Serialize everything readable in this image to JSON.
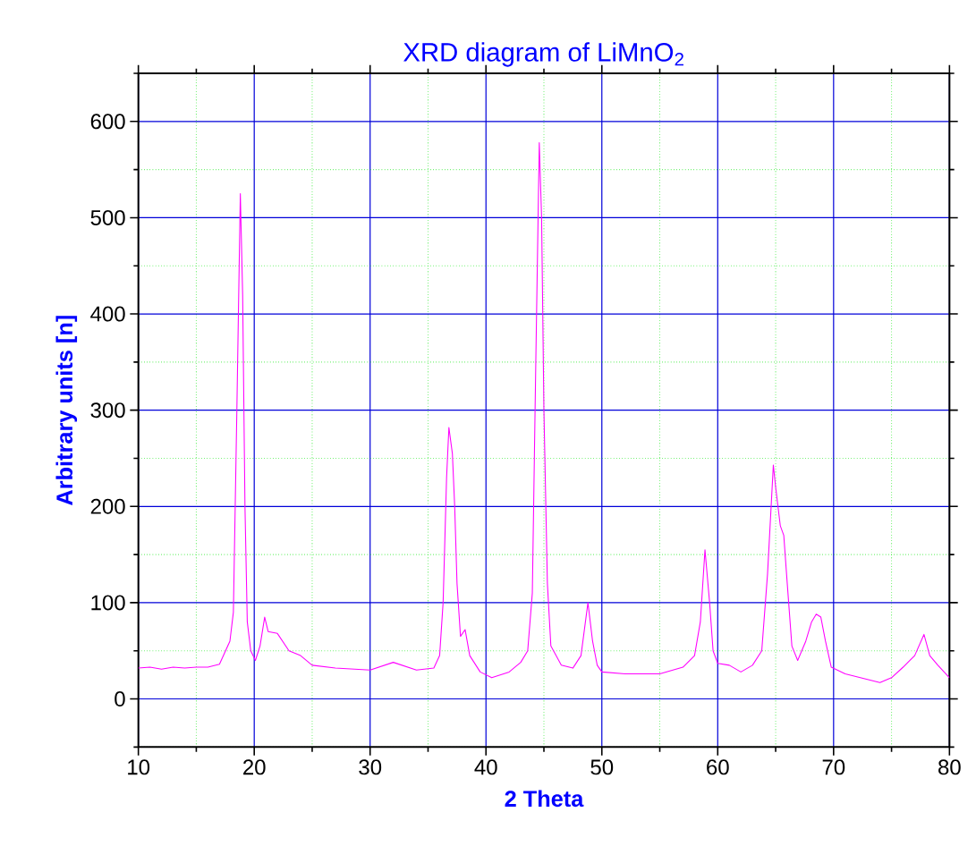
{
  "chart_data": {
    "type": "line",
    "title": "XRD diagram of LiMnO$_{2}$",
    "xlabel": "2 Theta",
    "ylabel": "Arbitrary units [n]",
    "x": [
      10,
      11,
      12,
      13,
      14,
      15,
      16,
      17,
      17.9,
      18.2,
      18.5,
      18.8,
      19.0,
      19.2,
      19.4,
      19.7,
      20.1,
      20.5,
      20.9,
      21.2,
      22,
      23,
      24,
      25,
      27,
      30,
      32,
      34,
      35.5,
      36,
      36.3,
      36.6,
      36.8,
      37.1,
      37.3,
      37.5,
      37.8,
      38.2,
      38.6,
      39.5,
      40.5,
      42,
      43,
      43.6,
      44.0,
      44.3,
      44.6,
      44.8,
      45.0,
      45.3,
      45.6,
      46.5,
      47.5,
      48.2,
      48.8,
      49.2,
      49.6,
      50,
      52,
      55,
      57,
      58,
      58.5,
      58.9,
      59.3,
      59.6,
      60,
      61,
      62,
      63,
      63.8,
      64.3,
      64.8,
      65.0,
      65.4,
      65.7,
      66,
      66.4,
      66.9,
      67.6,
      68.1,
      68.5,
      68.9,
      69.3,
      69.8,
      71,
      73,
      74,
      75,
      76,
      77,
      77.8,
      78.3,
      79,
      80
    ],
    "series": [
      {
        "color": "#ff00ff",
        "values": [
          32,
          33,
          31,
          33,
          32,
          33,
          33,
          36,
          60,
          90,
          300,
          525,
          420,
          200,
          80,
          50,
          40,
          55,
          85,
          70,
          68,
          50,
          45,
          35,
          32,
          30,
          38,
          30,
          32,
          45,
          100,
          230,
          282,
          255,
          200,
          120,
          65,
          72,
          45,
          28,
          22,
          28,
          38,
          50,
          110,
          350,
          578,
          500,
          300,
          120,
          55,
          35,
          32,
          45,
          100,
          60,
          35,
          28,
          26,
          26,
          33,
          45,
          80,
          155,
          100,
          50,
          37,
          35,
          28,
          35,
          50,
          130,
          243,
          220,
          180,
          170,
          120,
          55,
          40,
          60,
          80,
          88,
          85,
          60,
          33,
          26,
          20,
          17,
          22,
          33,
          45,
          67,
          45,
          35,
          22
        ]
      }
    ],
    "xlim": [
      10,
      80
    ],
    "ylim": [
      -50,
      650
    ],
    "xticks": [
      10,
      {
        "value": 15,
        "label": null
      },
      20,
      {
        "value": 25,
        "label": null
      },
      30,
      {
        "value": 35,
        "label": null
      },
      40,
      {
        "value": 45,
        "label": null
      },
      50,
      {
        "value": 55,
        "label": null
      },
      60,
      {
        "value": 65,
        "label": null
      },
      70,
      {
        "value": 75,
        "label": null
      },
      80
    ],
    "yticks": [
      {
        "value": -50,
        "label": null
      },
      0,
      {
        "value": 50,
        "label": null
      },
      100,
      {
        "value": 150,
        "label": null
      },
      200,
      {
        "value": 250,
        "label": null
      },
      300,
      {
        "value": 350,
        "label": null
      },
      400,
      {
        "value": 450,
        "label": null
      },
      500,
      {
        "value": 550,
        "label": null
      },
      600,
      {
        "value": 650,
        "label": null
      }
    ],
    "grid": true,
    "marker": "none",
    "line_style": "solid"
  }
}
